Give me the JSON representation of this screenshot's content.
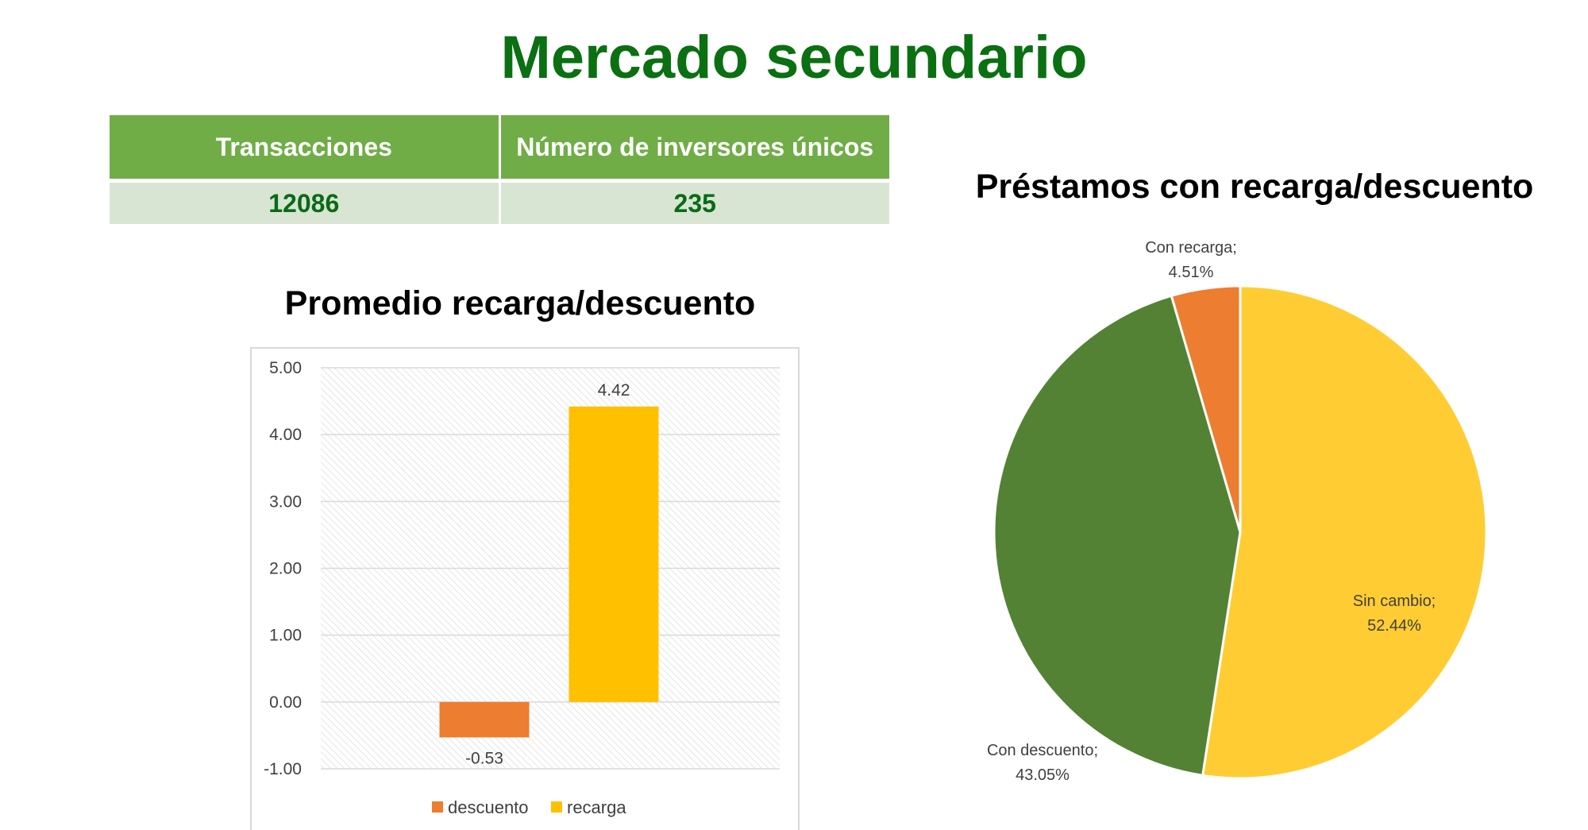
{
  "page": {
    "title": "Mercado secundario"
  },
  "summary_table": {
    "headers": [
      "Transacciones",
      "Número de inversores únicos"
    ],
    "values": [
      "12086",
      "235"
    ]
  },
  "colors": {
    "title_green": "#0a7012",
    "header_green": "#70ad47",
    "row_green": "#d9e5d3",
    "descuento": "#ed7d31",
    "recarga": "#ffc000",
    "pie_sin_cambio": "#ffcd33",
    "pie_con_descuento": "#548235",
    "pie_con_recarga": "#ed7d31"
  },
  "chart_data": [
    {
      "type": "bar",
      "title": "Promedio recarga/descuento",
      "ylim": [
        -1.0,
        5.0
      ],
      "yticks": [
        "5.00",
        "4.00",
        "3.00",
        "2.00",
        "1.00",
        "0.00",
        "-1.00"
      ],
      "grid": true,
      "legend_position": "bottom",
      "series": [
        {
          "name": "descuento",
          "value": -0.53,
          "label": "-0.53"
        },
        {
          "name": "recarga",
          "value": 4.42,
          "label": "4.42"
        }
      ]
    },
    {
      "type": "pie",
      "title": "Préstamos con recarga/descuento",
      "slices": [
        {
          "name": "Sin cambio",
          "value": 52.44,
          "label_name": "Sin cambio;",
          "label_value": "52.44%"
        },
        {
          "name": "Con descuento",
          "value": 43.05,
          "label_name": "Con descuento;",
          "label_value": "43.05%"
        },
        {
          "name": "Con recarga",
          "value": 4.51,
          "label_name": "Con recarga;",
          "label_value": "4.51%"
        }
      ]
    }
  ]
}
